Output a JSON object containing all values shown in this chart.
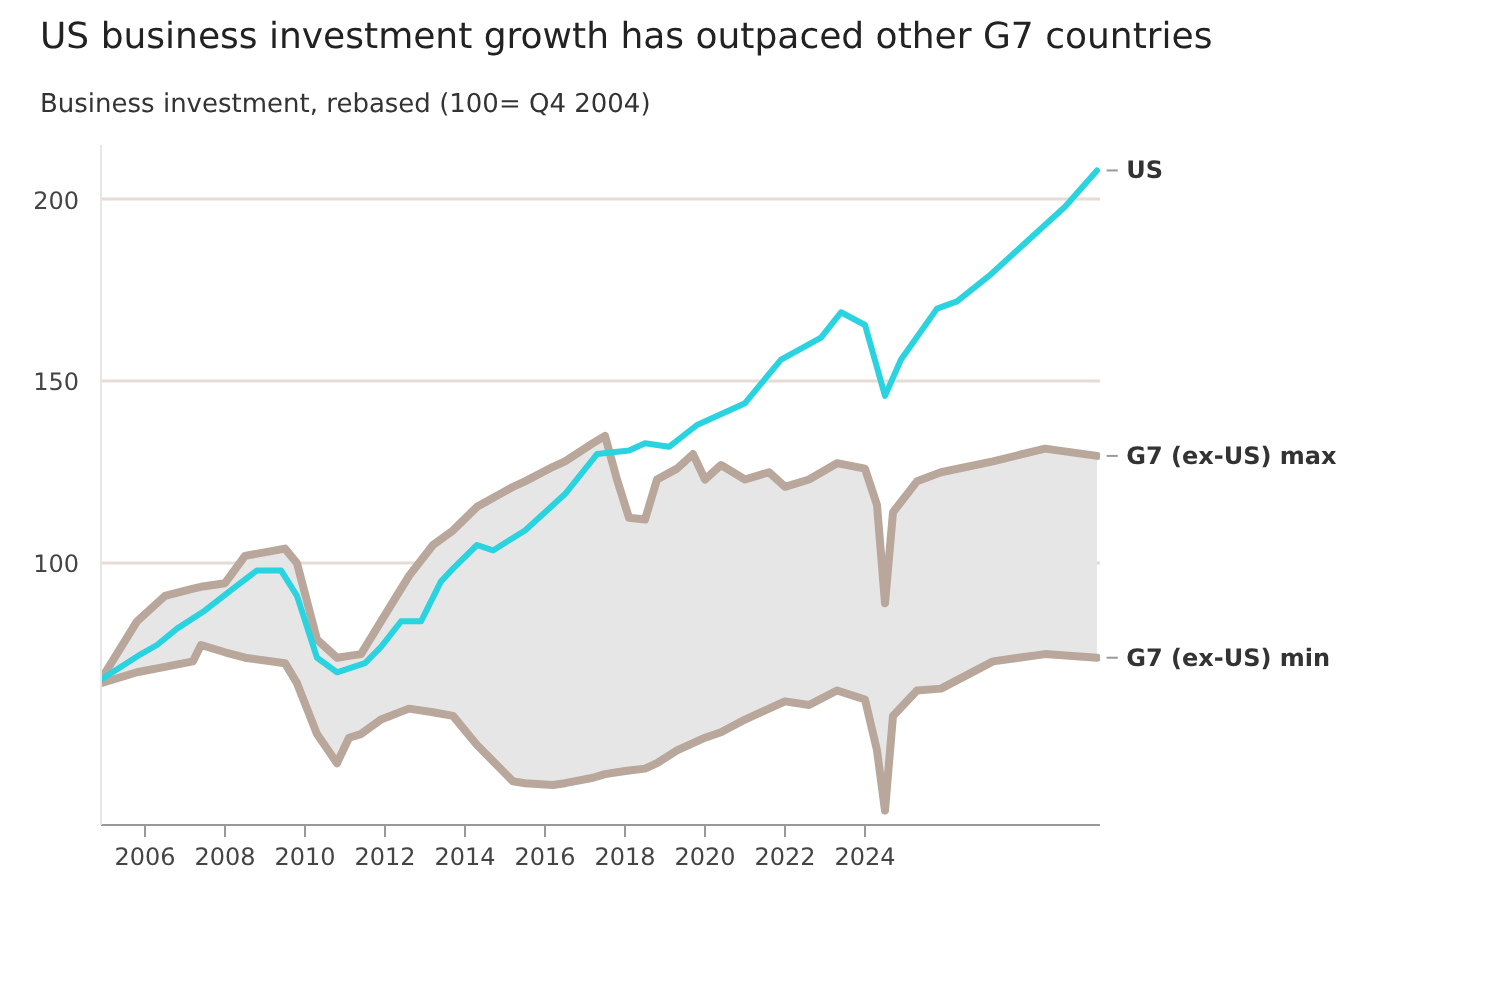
{
  "chart_data": {
    "type": "line",
    "title": "US business investment growth has outpaced other G7 countries",
    "subtitle": "Business investment, rebased (100= Q4 2004)",
    "xlim": [
      2004.9,
      2029.9
    ],
    "xticks": [
      2006,
      2008,
      2010,
      2012,
      2014,
      2016,
      2018,
      2020,
      2022,
      2024
    ],
    "ylim": [
      28,
      215
    ],
    "yticks": [
      100,
      150,
      200
    ],
    "grid": "y",
    "line_style": "solid",
    "series": [
      {
        "name": "US",
        "color": "#29d3e0",
        "x": [
          2004.9,
          2005.9,
          2006.3,
          2006.8,
          2007.5,
          2008.2,
          2008.8,
          2009.4,
          2009.8,
          2010.3,
          2010.8,
          2011.5,
          2011.9,
          2012.4,
          2012.9,
          2013.4,
          2013.7,
          2014.3,
          2014.7,
          2015.5,
          2016.5,
          2017.3,
          2018.1,
          2018.5,
          2019.1,
          2019.8,
          2021.0,
          2021.9,
          2022.9,
          2023.4,
          2024.0,
          2024.5,
          2024.9,
          2025.8,
          2026.3,
          2027.1,
          2028.1,
          2029.0,
          2029.8
        ],
        "values": [
          68,
          75,
          77.5,
          82,
          87,
          93,
          98,
          98,
          91,
          74,
          70,
          72.5,
          77,
          84,
          84,
          95,
          98.5,
          105,
          103.5,
          109,
          119,
          130,
          131,
          133,
          132,
          138,
          144,
          156,
          162,
          169,
          165.5,
          146,
          156,
          170,
          172,
          179,
          189,
          198,
          208
        ]
      },
      {
        "name": "G7 (ex-US) max",
        "color": "#b8a79a",
        "x": [
          2004.9,
          2005.8,
          2006.5,
          2007.2,
          2007.4,
          2008.0,
          2008.5,
          2009.5,
          2009.8,
          2010.3,
          2010.8,
          2011.1,
          2011.4,
          2011.9,
          2012.6,
          2013.2,
          2013.7,
          2014.3,
          2015.2,
          2015.5,
          2016.2,
          2016.5,
          2017.2,
          2017.5,
          2017.8,
          2018.1,
          2018.5,
          2018.8,
          2019.3,
          2019.7,
          2020.0,
          2020.4,
          2021.0,
          2021.6,
          2022.0,
          2022.6,
          2023.3,
          2024.0,
          2024.3,
          2024.5,
          2024.7,
          2025.3,
          2025.9,
          2027.2,
          2028.5,
          2029.8
        ],
        "values": [
          68,
          84,
          91,
          93,
          93.5,
          94.5,
          102,
          104,
          100,
          79,
          74,
          74.5,
          75,
          84,
          96.5,
          105,
          109,
          115.5,
          121,
          122.5,
          126.5,
          128,
          133,
          135,
          123,
          112.5,
          112,
          123,
          126,
          130,
          123,
          127,
          123,
          125,
          121,
          123,
          127.5,
          126,
          116,
          89,
          114,
          122.5,
          125,
          128,
          131.5,
          129.5
        ],
        "lower": [
          67,
          70,
          71.5,
          73,
          77.5,
          75.5,
          74,
          72.5,
          67,
          53,
          45,
          52,
          53,
          57,
          60,
          59,
          58,
          50,
          40,
          39.5,
          39,
          39.5,
          41,
          42,
          42.5,
          43,
          43.5,
          45,
          48.5,
          50.5,
          52,
          53.5,
          57,
          60,
          62,
          61,
          65,
          62.5,
          48.5,
          32,
          58,
          65,
          65.5,
          73,
          75,
          74
        ],
        "upper": [
          68,
          84,
          91,
          93,
          93.5,
          94.5,
          102,
          104,
          100,
          79,
          74,
          74.5,
          75,
          84,
          96.5,
          105,
          109,
          115.5,
          121,
          122.5,
          126.5,
          128,
          133,
          135,
          123,
          112.5,
          112,
          123,
          126,
          130,
          123,
          127,
          123,
          125,
          121,
          123,
          127.5,
          126,
          116,
          89,
          114,
          122.5,
          125,
          128,
          131.5,
          129.5
        ]
      },
      {
        "name": "G7 (ex-US) min",
        "color": "#b8a79a",
        "x": [
          2004.9,
          2005.8,
          2006.5,
          2007.2,
          2007.4,
          2008.0,
          2008.5,
          2009.5,
          2009.8,
          2010.3,
          2010.8,
          2011.1,
          2011.4,
          2011.9,
          2012.6,
          2013.2,
          2013.7,
          2014.3,
          2015.2,
          2015.5,
          2016.2,
          2016.5,
          2017.2,
          2017.5,
          2017.8,
          2018.1,
          2018.5,
          2018.8,
          2019.3,
          2019.7,
          2020.0,
          2020.4,
          2021.0,
          2021.6,
          2022.0,
          2022.6,
          2023.3,
          2024.0,
          2024.3,
          2024.5,
          2024.7,
          2025.3,
          2025.9,
          2027.2,
          2028.5,
          2029.8
        ],
        "values": [
          67,
          70,
          71.5,
          73,
          77.5,
          75.5,
          74,
          72.5,
          67,
          53,
          45,
          52,
          53,
          57,
          60,
          59,
          58,
          50,
          40,
          39.5,
          39,
          39.5,
          41,
          42,
          42.5,
          43,
          43.5,
          45,
          48.5,
          50.5,
          52,
          53.5,
          57,
          60,
          62,
          61,
          65,
          62.5,
          48.5,
          32,
          58,
          65,
          65.5,
          73,
          75,
          74
        ]
      }
    ]
  }
}
